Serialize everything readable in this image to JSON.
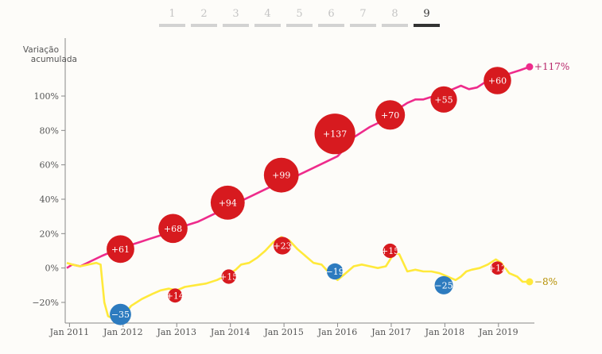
{
  "pager": {
    "pages": [
      "1",
      "2",
      "3",
      "4",
      "5",
      "6",
      "7",
      "8",
      "9"
    ],
    "active": "9"
  },
  "colors": {
    "line_up": "#ee2b8b",
    "line_down": "#ffe93b",
    "bubble_positive": "#d71a1f",
    "bubble_negative": "#2d7bbf",
    "end_label_up": "#b8276b",
    "end_label_down": "#b58f00"
  },
  "chart_data": {
    "type": "line",
    "ylabel": "Variação acumulada",
    "ylim": [
      -32,
      130
    ],
    "yticks": [
      {
        "value": 100,
        "label": "100%"
      },
      {
        "value": 80,
        "label": "80%"
      },
      {
        "value": 60,
        "label": "60%"
      },
      {
        "value": 40,
        "label": "40%"
      },
      {
        "value": 20,
        "label": "20%"
      },
      {
        "value": 0,
        "label": "0%"
      },
      {
        "value": -20,
        "label": "−20%"
      }
    ],
    "xticks": [
      {
        "value": 2011.0,
        "label": "Jan 2011"
      },
      {
        "value": 2012.0,
        "label": "Jan 2012"
      },
      {
        "value": 2013.0,
        "label": "Jan 2013"
      },
      {
        "value": 2014.0,
        "label": "Jan 2014"
      },
      {
        "value": 2015.0,
        "label": "Jan 2015"
      },
      {
        "value": 2016.0,
        "label": "Jan 2016"
      },
      {
        "value": 2017.0,
        "label": "Jan 2017"
      },
      {
        "value": 2018.0,
        "label": "Jan 2018"
      },
      {
        "value": 2019.0,
        "label": "Jan 2019"
      }
    ],
    "xlim": [
      2010.92,
      2019.67
    ],
    "grid": false,
    "series": [
      {
        "key": "up",
        "end_label": "+117%",
        "points": [
          [
            2010.95,
            0
          ],
          [
            2011.05,
            2
          ],
          [
            2011.2,
            1
          ],
          [
            2011.4,
            4
          ],
          [
            2011.6,
            7
          ],
          [
            2011.75,
            9
          ],
          [
            2011.9,
            11
          ],
          [
            2012.1,
            13
          ],
          [
            2012.3,
            15
          ],
          [
            2012.5,
            17
          ],
          [
            2012.7,
            19
          ],
          [
            2012.85,
            21
          ],
          [
            2013.0,
            23
          ],
          [
            2013.2,
            25
          ],
          [
            2013.4,
            27
          ],
          [
            2013.6,
            30
          ],
          [
            2013.8,
            33
          ],
          [
            2014.0,
            36
          ],
          [
            2014.2,
            39
          ],
          [
            2014.4,
            42
          ],
          [
            2014.6,
            45
          ],
          [
            2014.8,
            48
          ],
          [
            2015.0,
            51
          ],
          [
            2015.2,
            53
          ],
          [
            2015.4,
            56
          ],
          [
            2015.6,
            59
          ],
          [
            2015.8,
            62
          ],
          [
            2016.0,
            65
          ],
          [
            2016.15,
            70
          ],
          [
            2016.3,
            76
          ],
          [
            2016.5,
            80
          ],
          [
            2016.6,
            82
          ],
          [
            2016.8,
            85
          ],
          [
            2017.0,
            88
          ],
          [
            2017.1,
            92
          ],
          [
            2017.2,
            94
          ],
          [
            2017.3,
            96
          ],
          [
            2017.45,
            98
          ],
          [
            2017.6,
            98
          ],
          [
            2017.8,
            100
          ],
          [
            2018.0,
            102
          ],
          [
            2018.15,
            104
          ],
          [
            2018.3,
            106
          ],
          [
            2018.45,
            104
          ],
          [
            2018.6,
            105
          ],
          [
            2018.8,
            109
          ],
          [
            2019.0,
            111
          ],
          [
            2019.2,
            113
          ],
          [
            2019.4,
            115
          ],
          [
            2019.58,
            117
          ]
        ]
      },
      {
        "key": "down",
        "end_label": "−8%",
        "points": [
          [
            2010.95,
            3
          ],
          [
            2011.05,
            2
          ],
          [
            2011.2,
            1
          ],
          [
            2011.35,
            2
          ],
          [
            2011.5,
            3
          ],
          [
            2011.58,
            2
          ],
          [
            2011.65,
            -20
          ],
          [
            2011.72,
            -28
          ],
          [
            2011.85,
            -30
          ],
          [
            2012.0,
            -28
          ],
          [
            2012.15,
            -22
          ],
          [
            2012.35,
            -18
          ],
          [
            2012.55,
            -15
          ],
          [
            2012.7,
            -13
          ],
          [
            2012.85,
            -12
          ],
          [
            2013.0,
            -13
          ],
          [
            2013.15,
            -11
          ],
          [
            2013.35,
            -10
          ],
          [
            2013.55,
            -9
          ],
          [
            2013.75,
            -7
          ],
          [
            2013.95,
            -4
          ],
          [
            2014.1,
            -1
          ],
          [
            2014.2,
            2
          ],
          [
            2014.35,
            3
          ],
          [
            2014.5,
            6
          ],
          [
            2014.65,
            10
          ],
          [
            2014.8,
            15
          ],
          [
            2014.95,
            18
          ],
          [
            2015.1,
            16
          ],
          [
            2015.25,
            11
          ],
          [
            2015.4,
            7
          ],
          [
            2015.55,
            3
          ],
          [
            2015.7,
            2
          ],
          [
            2015.85,
            -3
          ],
          [
            2016.0,
            -7
          ],
          [
            2016.15,
            -3
          ],
          [
            2016.3,
            1
          ],
          [
            2016.45,
            2
          ],
          [
            2016.6,
            1
          ],
          [
            2016.75,
            0
          ],
          [
            2016.9,
            1
          ],
          [
            2017.0,
            6
          ],
          [
            2017.05,
            9
          ],
          [
            2017.15,
            8
          ],
          [
            2017.3,
            -2
          ],
          [
            2017.45,
            -1
          ],
          [
            2017.6,
            -2
          ],
          [
            2017.75,
            -2
          ],
          [
            2017.9,
            -3
          ],
          [
            2018.05,
            -5
          ],
          [
            2018.2,
            -7
          ],
          [
            2018.3,
            -5
          ],
          [
            2018.4,
            -2
          ],
          [
            2018.5,
            -1
          ],
          [
            2018.65,
            0
          ],
          [
            2018.8,
            2
          ],
          [
            2018.95,
            5
          ],
          [
            2019.05,
            3
          ],
          [
            2019.2,
            -3
          ],
          [
            2019.35,
            -5
          ],
          [
            2019.45,
            -8
          ],
          [
            2019.58,
            -8
          ]
        ]
      }
    ],
    "bubbles": [
      {
        "series": "up",
        "x": 2011.95,
        "y": 11,
        "value": 61,
        "label": "+61"
      },
      {
        "series": "up",
        "x": 2012.93,
        "y": 23,
        "value": 68,
        "label": "+68"
      },
      {
        "series": "up",
        "x": 2013.95,
        "y": 38,
        "value": 94,
        "label": "+94"
      },
      {
        "series": "up",
        "x": 2014.95,
        "y": 54,
        "value": 99,
        "label": "+99"
      },
      {
        "series": "up",
        "x": 2015.95,
        "y": 78,
        "value": 137,
        "label": "+137"
      },
      {
        "series": "up",
        "x": 2016.98,
        "y": 89,
        "value": 70,
        "label": "+70"
      },
      {
        "series": "up",
        "x": 2017.98,
        "y": 98,
        "value": 55,
        "label": "+55"
      },
      {
        "series": "up",
        "x": 2018.98,
        "y": 109,
        "value": 60,
        "label": "+60"
      },
      {
        "series": "down",
        "x": 2011.95,
        "y": -27,
        "value": -35,
        "label": "−35"
      },
      {
        "series": "down",
        "x": 2012.97,
        "y": -16,
        "value": 14,
        "label": "+14"
      },
      {
        "series": "down",
        "x": 2013.97,
        "y": -5,
        "value": 15,
        "label": "+15"
      },
      {
        "series": "down",
        "x": 2014.97,
        "y": 13,
        "value": 23,
        "label": "+23"
      },
      {
        "series": "down",
        "x": 2015.95,
        "y": -2,
        "value": -19,
        "label": "−19"
      },
      {
        "series": "down",
        "x": 2016.98,
        "y": 10,
        "value": 15,
        "label": "+15"
      },
      {
        "series": "down",
        "x": 2017.98,
        "y": -10,
        "value": -25,
        "label": "−25"
      },
      {
        "series": "down",
        "x": 2018.98,
        "y": 0,
        "value": 12,
        "label": "+12"
      }
    ]
  }
}
